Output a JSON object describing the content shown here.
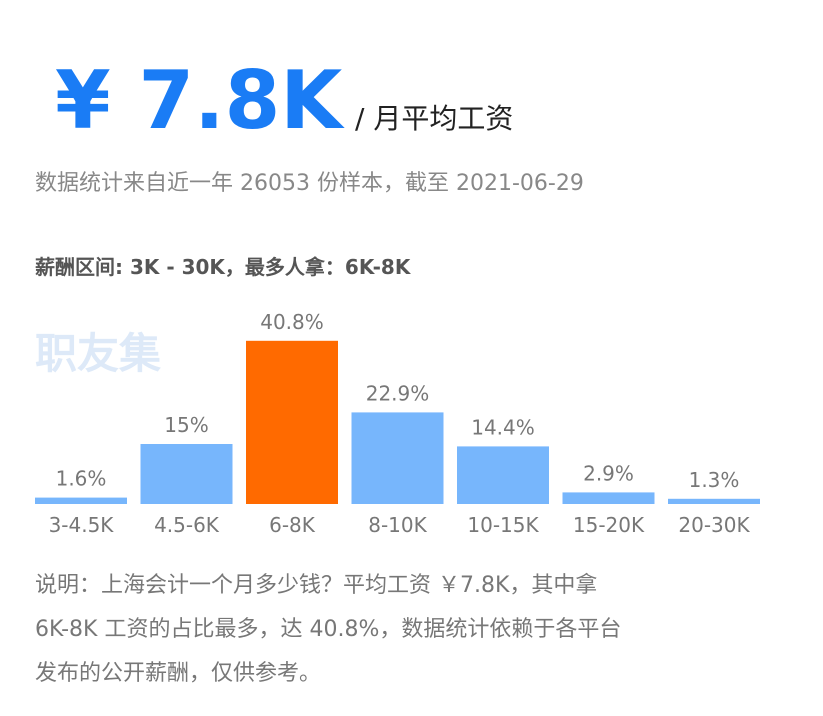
{
  "header": {
    "amount": "¥ 7.8K",
    "unit": "/ 月平均工资",
    "subtitle": "数据统计来自近一年 26053 份样本，截至 2021-06-29",
    "range": "薪酬区间: 3K - 30K，最多人拿：6K-8K",
    "watermark": "职友集"
  },
  "chart_data": {
    "type": "bar",
    "categories": [
      "3-4.5K",
      "4.5-6K",
      "6-8K",
      "8-10K",
      "10-15K",
      "15-20K",
      "20-30K"
    ],
    "values": [
      1.6,
      15,
      40.8,
      22.9,
      14.4,
      2.9,
      1.3
    ],
    "value_labels": [
      "1.6%",
      "15%",
      "40.8%",
      "22.9%",
      "14.4%",
      "2.9%",
      "1.3%"
    ],
    "colors": [
      "#77b6fc",
      "#77b6fc",
      "#ff6a00",
      "#77b6fc",
      "#77b6fc",
      "#77b6fc",
      "#77b6fc"
    ]
  },
  "note": {
    "lines": [
      "说明：上海会计一个月多少钱？平均工资 ￥7.8K，其中拿",
      "6K-8K 工资的占比最多，达 40.8%，数据统计依赖于各平台",
      "发布的公开薪酬，仅供参考。"
    ]
  }
}
